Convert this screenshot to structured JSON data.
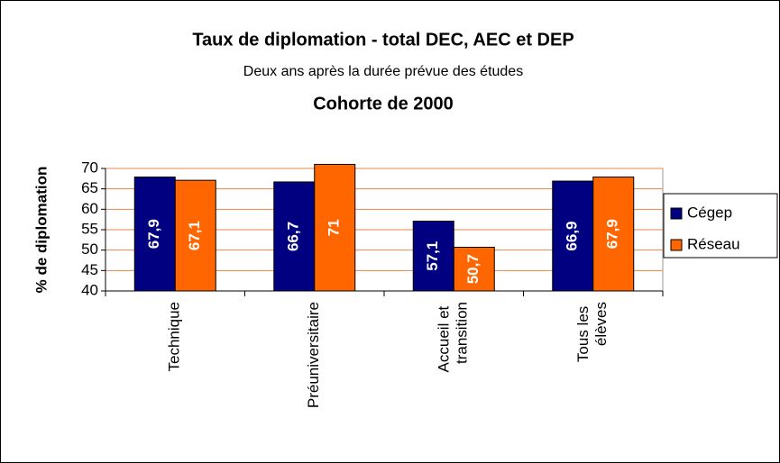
{
  "chart_data": {
    "type": "bar",
    "title": "Taux de diplomation - total DEC, AEC et DEP",
    "subtitle": "Deux ans après la durée prévue des études",
    "subtitle2": "Cohorte de 2000",
    "y_label": "% de diplomation",
    "categories": [
      "Technique",
      "Préuniversitaire",
      "Accueil et transition",
      "Tous les élèves"
    ],
    "series": [
      {
        "name": "Cégep",
        "color": "#000080",
        "values": [
          67.9,
          66.7,
          57.1,
          66.9
        ],
        "value_labels": [
          "67,9",
          "66,7",
          "57,1",
          "66,9"
        ]
      },
      {
        "name": "Réseau",
        "color": "#ff6600",
        "values": [
          67.1,
          71,
          50.7,
          67.9
        ],
        "value_labels": [
          "67,1",
          "71",
          "50,7",
          "67,9"
        ]
      }
    ],
    "ylim": [
      40,
      70
    ],
    "yticks": [
      40,
      45,
      50,
      55,
      60,
      65,
      70
    ],
    "grid": true,
    "grid_color": "#e8874a",
    "legend": "right"
  }
}
